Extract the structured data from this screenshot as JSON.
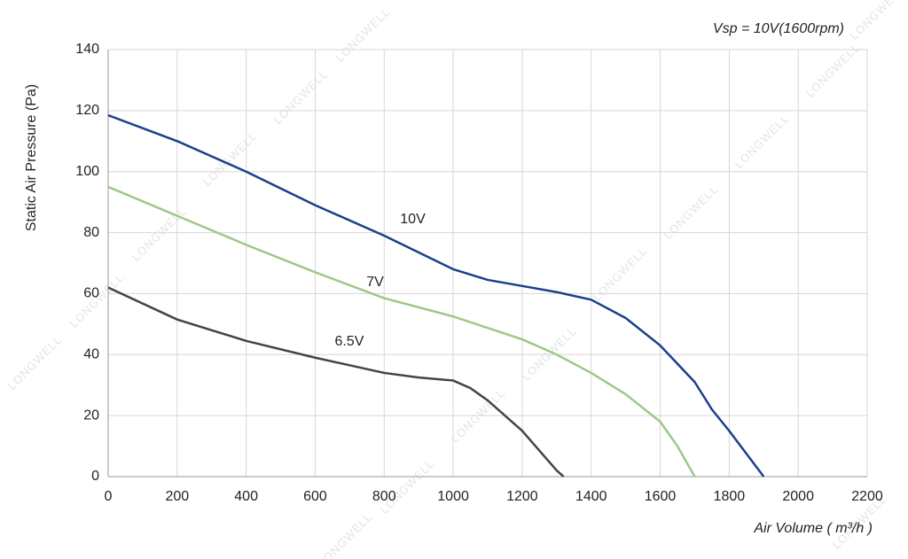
{
  "chart_data": {
    "type": "line",
    "title": "Vsp = 10V(1600rpm)",
    "xlabel": "Air Volume ( m³/h )",
    "ylabel": "Static Air Pressure  (Pa)",
    "watermark": "LONGWELL",
    "xlim": [
      0,
      2200
    ],
    "xticks": [
      0,
      200,
      400,
      600,
      800,
      1000,
      1200,
      1400,
      1600,
      1800,
      2000,
      2200
    ],
    "ylim": [
      0,
      140
    ],
    "yticks": [
      0,
      20,
      40,
      60,
      80,
      100,
      120,
      140
    ],
    "grid": true,
    "series": [
      {
        "name": "10V",
        "color": "#1b3f8b",
        "x": [
          0,
          200,
          400,
          600,
          800,
          1000,
          1100,
          1200,
          1300,
          1400,
          1500,
          1600,
          1700,
          1750,
          1800,
          1900
        ],
        "values": [
          118.5,
          110,
          100,
          89,
          79,
          68,
          64.5,
          62.5,
          60.5,
          58,
          52,
          43,
          31,
          22,
          15,
          0
        ]
      },
      {
        "name": "7V",
        "color": "#9dc88a",
        "x": [
          0,
          200,
          400,
          600,
          800,
          1000,
          1200,
          1300,
          1400,
          1500,
          1600,
          1650,
          1700
        ],
        "values": [
          95,
          85.5,
          76,
          67,
          58.5,
          52.5,
          45,
          40,
          34,
          27,
          18,
          10,
          0
        ]
      },
      {
        "name": "6.5V",
        "color": "#444444",
        "x": [
          0,
          200,
          400,
          600,
          800,
          900,
          1000,
          1050,
          1100,
          1200,
          1300,
          1320
        ],
        "values": [
          62,
          51.5,
          44.5,
          39,
          34,
          32.5,
          31.5,
          29,
          25,
          15,
          2,
          0
        ]
      }
    ]
  }
}
